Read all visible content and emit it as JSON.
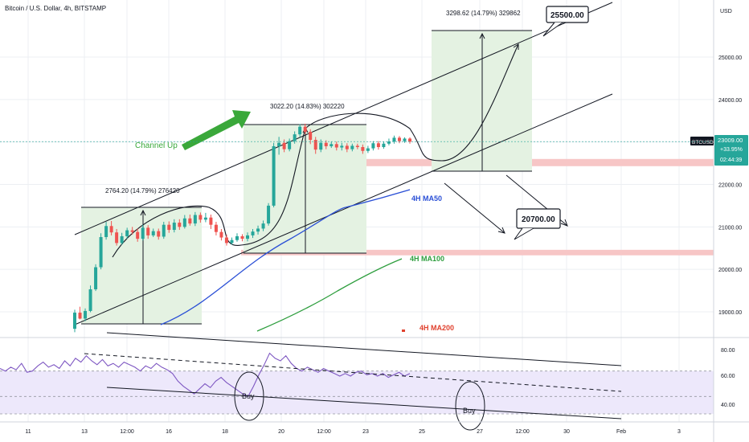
{
  "header": {
    "symbol_line": "Bitcoin / U.S. Dollar, 4h, BITSTAMP"
  },
  "colors": {
    "up": "#26a69a",
    "down": "#ef5350",
    "ma50": "#2a4fd6",
    "ma100": "#2e9e3e",
    "ma200": "#e0412e",
    "zone": "#f7c6c6",
    "measure_bg": "#e4f2e2",
    "rsi_bg": "#ede8fb",
    "rsi_line": "#7e57c2",
    "arrow_green": "#3aa83a"
  },
  "price_axis": {
    "unit": "USD",
    "ticks": [
      "25000.00",
      "24000.00",
      "23000.00",
      "22000.00",
      "21000.00",
      "20000.00",
      "19000.00"
    ]
  },
  "rsi_axis": {
    "ticks": [
      "80.00",
      "60.00",
      "40.00"
    ]
  },
  "time_axis": {
    "ticks": [
      "11",
      "13",
      "12:00",
      "16",
      "18",
      "20",
      "12:00",
      "23",
      "25",
      "27",
      "12:00",
      "30",
      "Feb",
      "3"
    ]
  },
  "price_badge": {
    "symbol": "BTCUSD",
    "price": "23009.00",
    "change": "+33.95%",
    "countdown": "02:44:39"
  },
  "annotations": {
    "channel_label": "Channel Up",
    "measure_1": "2764.20 (14.79%) 276420",
    "measure_2": "3022.20 (14.83%) 302220",
    "measure_3": "3298.62 (14.79%) 329862",
    "target_high": "25500.00",
    "target_low": "20700.00",
    "ma50_label": "4H MA50",
    "ma100_label": "4H MA100",
    "ma200_label": "4H MA200",
    "buy_1": "Buy",
    "buy_2": "Buy"
  },
  "chart_data": {
    "type": "candlestick",
    "title": "Bitcoin / U.S. Dollar, 4h, BITSTAMP",
    "ylim": [
      18450,
      26500
    ],
    "resistance_zones": [
      [
        22430,
        22600
      ],
      [
        20330,
        20460
      ]
    ],
    "candles": [
      [
        18600,
        18980,
        18520,
        19050
      ],
      [
        18980,
        18840,
        18820,
        19120
      ],
      [
        18840,
        19020,
        18780,
        19080
      ],
      [
        19020,
        19530,
        18990,
        19620
      ],
      [
        19530,
        20050,
        19490,
        20120
      ],
      [
        20050,
        20760,
        20000,
        20850
      ],
      [
        20760,
        21020,
        20700,
        21120
      ],
      [
        21020,
        20870,
        20800,
        21140
      ],
      [
        20870,
        20620,
        20560,
        20950
      ],
      [
        20620,
        20780,
        20580,
        20860
      ],
      [
        20780,
        20920,
        20720,
        20980
      ],
      [
        20920,
        20880,
        20820,
        21000
      ],
      [
        20880,
        20720,
        20650,
        20960
      ],
      [
        20720,
        20980,
        20680,
        21050
      ],
      [
        20980,
        20800,
        20720,
        21040
      ],
      [
        20800,
        20900,
        20760,
        20960
      ],
      [
        20900,
        20770,
        20700,
        20960
      ],
      [
        20770,
        21050,
        20720,
        21120
      ],
      [
        21050,
        20930,
        20860,
        21130
      ],
      [
        20930,
        21100,
        20870,
        21180
      ],
      [
        21100,
        21000,
        20930,
        21180
      ],
      [
        21000,
        21200,
        20960,
        21280
      ],
      [
        21200,
        21080,
        21030,
        21290
      ],
      [
        21080,
        21280,
        21020,
        21350
      ],
      [
        21280,
        21170,
        21100,
        21340
      ],
      [
        21170,
        21220,
        21110,
        21330
      ],
      [
        21220,
        21050,
        20950,
        21290
      ],
      [
        21050,
        20880,
        20800,
        21120
      ],
      [
        20880,
        20750,
        20680,
        20950
      ],
      [
        20750,
        20620,
        20560,
        20820
      ],
      [
        20620,
        20690,
        20580,
        20750
      ],
      [
        20690,
        20780,
        20650,
        20850
      ],
      [
        20780,
        20720,
        20660,
        20830
      ],
      [
        20720,
        20800,
        20660,
        20870
      ],
      [
        20800,
        20890,
        20740,
        20950
      ],
      [
        20890,
        20960,
        20820,
        21030
      ],
      [
        20960,
        21080,
        20900,
        21150
      ],
      [
        21080,
        21500,
        21030,
        21560
      ],
      [
        21500,
        22900,
        21460,
        22980
      ],
      [
        22900,
        22980,
        22700,
        23120
      ],
      [
        22980,
        22830,
        22760,
        23060
      ],
      [
        22830,
        23020,
        22780,
        23080
      ],
      [
        23020,
        23180,
        22960,
        23250
      ],
      [
        23180,
        23360,
        23120,
        23420
      ],
      [
        23360,
        23240,
        23180,
        23430
      ],
      [
        23240,
        23050,
        22950,
        23300
      ],
      [
        23050,
        22820,
        22720,
        23120
      ],
      [
        22820,
        22980,
        22760,
        23060
      ],
      [
        22980,
        22900,
        22830,
        23040
      ],
      [
        22900,
        22950,
        22860,
        23010
      ],
      [
        22950,
        22870,
        22800,
        23010
      ],
      [
        22870,
        22910,
        22800,
        22980
      ],
      [
        22910,
        22830,
        22760,
        22970
      ],
      [
        22830,
        22910,
        22780,
        22960
      ],
      [
        22910,
        22880,
        22830,
        22960
      ],
      [
        22880,
        22790,
        22720,
        22940
      ],
      [
        22790,
        22850,
        22740,
        22910
      ],
      [
        22850,
        22970,
        22800,
        23020
      ],
      [
        22970,
        22880,
        22820,
        23020
      ],
      [
        22880,
        22960,
        22840,
        23010
      ],
      [
        22960,
        23010,
        22920,
        23080
      ],
      [
        23010,
        23100,
        22960,
        23150
      ],
      [
        23100,
        23020,
        22970,
        23140
      ],
      [
        23020,
        23080,
        22980,
        23110
      ],
      [
        23080,
        23009,
        22960,
        23110
      ]
    ],
    "ma50": [
      [
        20100,
        18620
      ],
      [
        20460,
        19840
      ],
      [
        20690,
        20380
      ],
      [
        21000,
        21580
      ],
      [
        21230,
        21880
      ]
    ],
    "ma100": [
      [
        19560,
        18340
      ],
      [
        19710,
        18700
      ],
      [
        20100,
        19230
      ],
      [
        20400,
        20080
      ]
    ],
    "ma200_visible_value": 18650,
    "projection_path": [
      [
        22420,
        0
      ],
      [
        22550,
        0.5
      ],
      [
        23100,
        1.3
      ],
      [
        24000,
        2.2
      ],
      [
        25300,
        2.9
      ]
    ],
    "rsi": [
      72,
      70,
      73,
      71,
      76,
      69,
      70,
      74,
      77,
      73,
      75,
      72,
      78,
      74,
      80,
      77,
      82,
      78,
      75,
      79,
      74,
      76,
      73,
      77,
      75,
      73,
      70,
      74,
      72,
      76,
      73,
      71,
      68,
      62,
      58,
      55,
      52,
      56,
      60,
      57,
      62,
      65,
      61,
      58,
      55,
      52,
      50,
      58,
      67,
      75,
      84,
      80,
      78,
      82,
      76,
      72,
      70,
      73,
      71,
      69,
      72,
      70,
      68,
      66,
      68,
      66,
      69,
      70,
      67,
      68,
      66,
      68,
      65,
      67,
      69,
      66,
      68
    ],
    "rsi_ylim": [
      30,
      90
    ]
  }
}
